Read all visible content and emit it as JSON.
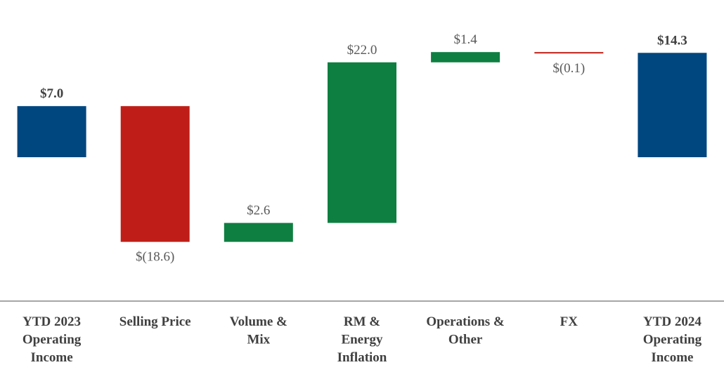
{
  "chart_data": {
    "type": "bar",
    "subtype": "waterfall",
    "title": "",
    "xlabel": "",
    "ylabel": "",
    "unit_prefix": "$",
    "categories": [
      [
        "YTD 2023",
        "Operating",
        "Income"
      ],
      [
        "Selling Price"
      ],
      [
        "Volume &",
        "Mix"
      ],
      [
        "RM &",
        "Energy",
        "Inflation"
      ],
      [
        "Operations &",
        "Other"
      ],
      [
        "FX"
      ],
      [
        "YTD 2024",
        "Operating",
        "Income"
      ]
    ],
    "values": [
      7.0,
      -18.6,
      2.6,
      22.0,
      1.4,
      -0.1,
      14.3
    ],
    "kinds": [
      "total",
      "delta",
      "delta",
      "delta",
      "delta",
      "delta",
      "total"
    ],
    "value_labels": [
      "$7.0",
      "$(18.6)",
      "$2.6",
      "$22.0",
      "$1.4",
      "$(0.1)",
      "$14.3"
    ],
    "bold_labels": [
      true,
      false,
      false,
      false,
      false,
      false,
      true
    ],
    "colors": {
      "total": "#00467f",
      "increase": "#0e7f41",
      "decrease": "#be1e17",
      "axis": "#a6a6a6"
    },
    "grid": false,
    "legend": "none"
  }
}
